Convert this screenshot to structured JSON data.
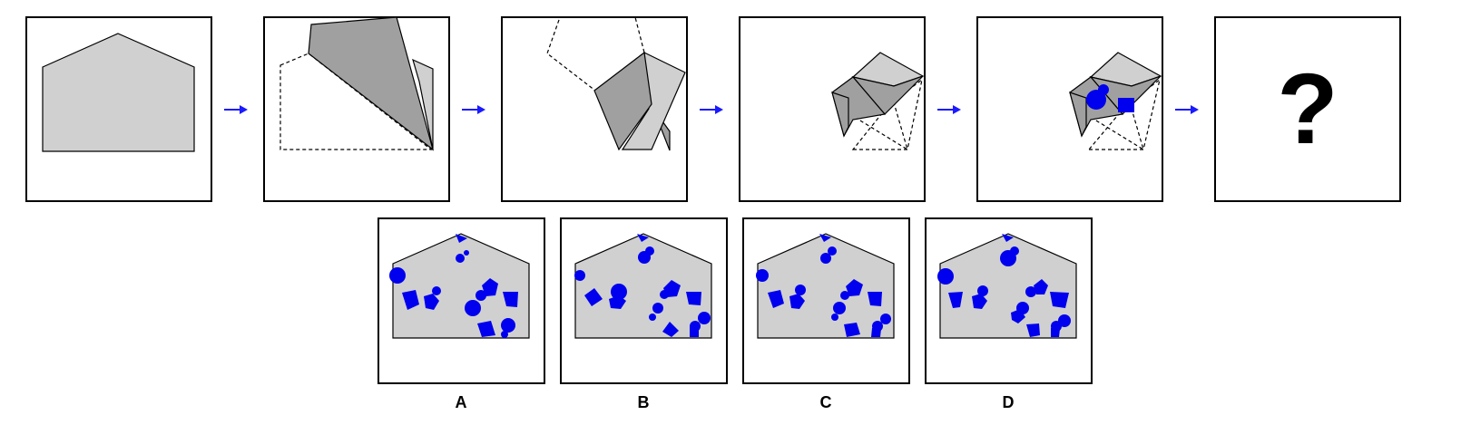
{
  "colors": {
    "paper": "#d0d0d0",
    "paper_fold": "#a0a0a0",
    "hole": "#0000ee",
    "arrow": "#1a1aff",
    "frame": "#000000"
  },
  "sequence": {
    "steps": [
      "unfolded-paper",
      "first-fold",
      "second-fold",
      "third-fold",
      "hole-punched"
    ],
    "question_mark": "?"
  },
  "options": [
    {
      "label": "A"
    },
    {
      "label": "B"
    },
    {
      "label": "C"
    },
    {
      "label": "D"
    }
  ]
}
